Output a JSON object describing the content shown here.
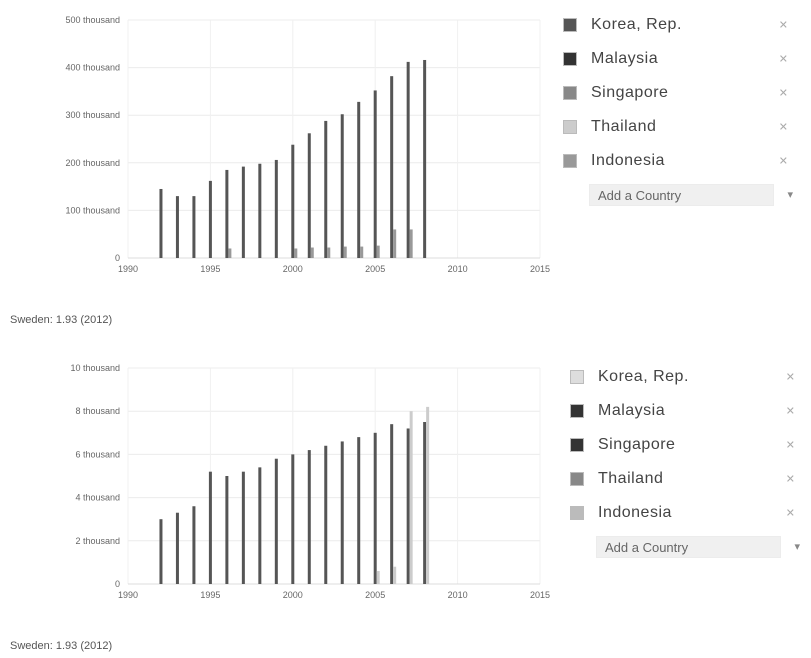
{
  "charts": [
    {
      "id": "top",
      "subtitle": "Sweden: 1.93 (2012)",
      "legend": [
        {
          "label": "Korea, Rep.",
          "color": "#555555",
          "remove": "✕"
        },
        {
          "label": "Malaysia",
          "color": "#333333",
          "remove": "✕"
        },
        {
          "label": "Singapore",
          "color": "#888888",
          "remove": "✕"
        },
        {
          "label": "Thailand",
          "color": "#cccccc",
          "remove": "✕"
        },
        {
          "label": "Indonesia",
          "color": "#999999",
          "remove": "✕"
        }
      ],
      "add_country": "Add a Country",
      "add_chevron": "▾"
    },
    {
      "id": "bottom",
      "subtitle": "Sweden: 1.93 (2012)",
      "legend": [
        {
          "label": "Korea, Rep.",
          "color": "#dddddd",
          "remove": "✕"
        },
        {
          "label": "Malaysia",
          "color": "#333333",
          "remove": "✕"
        },
        {
          "label": "Singapore",
          "color": "#333333",
          "remove": "✕"
        },
        {
          "label": "Thailand",
          "color": "#888888",
          "remove": "✕"
        },
        {
          "label": "Indonesia",
          "color": "#bbbbbb",
          "remove": "✕"
        }
      ],
      "add_country": "Add a Country",
      "add_chevron": "▾"
    }
  ],
  "chart_data": [
    {
      "type": "bar",
      "title": "",
      "xlabel": "",
      "ylabel": "",
      "xlim": [
        1990,
        2015
      ],
      "ylim": [
        0,
        500000
      ],
      "yticks": [
        0,
        100000,
        200000,
        300000,
        400000,
        500000
      ],
      "ytick_labels": [
        "0",
        "100 thousand",
        "200 thousand",
        "300 thousand",
        "400 thousand",
        "500 thousand"
      ],
      "xticks": [
        1990,
        1995,
        2000,
        2005,
        2010,
        2015
      ],
      "xtick_labels": [
        "1990",
        "1995",
        "2000",
        "2005",
        "2010",
        "2015"
      ],
      "grid": true,
      "legend": "right",
      "series": [
        {
          "name": "Korea, Rep.",
          "color": "#555555",
          "points": [
            [
              1992,
              145000
            ],
            [
              1993,
              130000
            ],
            [
              1994,
              130000
            ],
            [
              1995,
              162000
            ],
            [
              1996,
              185000
            ],
            [
              1997,
              192000
            ],
            [
              1998,
              198000
            ],
            [
              1999,
              206000
            ],
            [
              2000,
              238000
            ],
            [
              2001,
              262000
            ],
            [
              2002,
              288000
            ],
            [
              2003,
              302000
            ],
            [
              2004,
              328000
            ],
            [
              2005,
              352000
            ],
            [
              2006,
              382000
            ],
            [
              2007,
              412000
            ],
            [
              2008,
              416000
            ]
          ]
        },
        {
          "name": "Singapore",
          "color": "#999999",
          "points": [
            [
              1996,
              20000
            ],
            [
              2000,
              20000
            ],
            [
              2001,
              22000
            ],
            [
              2002,
              22000
            ],
            [
              2003,
              24000
            ],
            [
              2004,
              24000
            ],
            [
              2005,
              26000
            ],
            [
              2006,
              60000
            ],
            [
              2007,
              60000
            ]
          ]
        }
      ]
    },
    {
      "type": "bar",
      "title": "",
      "xlabel": "",
      "ylabel": "",
      "xlim": [
        1990,
        2015
      ],
      "ylim": [
        0,
        10
      ],
      "yticks": [
        0,
        2,
        4,
        6,
        8,
        10
      ],
      "ytick_labels": [
        "0",
        "2 thousand",
        "4 thousand",
        "6 thousand",
        "8 thousand",
        "10 thousand"
      ],
      "xticks": [
        1990,
        1995,
        2000,
        2005,
        2010,
        2015
      ],
      "xtick_labels": [
        "1990",
        "1995",
        "2000",
        "2005",
        "2010",
        "2015"
      ],
      "grid": true,
      "legend": "right",
      "series": [
        {
          "name": "Malaysia",
          "color": "#555555",
          "points": [
            [
              1992,
              3.0
            ],
            [
              1993,
              3.3
            ],
            [
              1994,
              3.6
            ],
            [
              1995,
              5.2
            ],
            [
              1996,
              5.0
            ],
            [
              1997,
              5.2
            ],
            [
              1998,
              5.4
            ],
            [
              1999,
              5.8
            ],
            [
              2000,
              6.0
            ],
            [
              2001,
              6.2
            ],
            [
              2002,
              6.4
            ],
            [
              2003,
              6.6
            ],
            [
              2004,
              6.8
            ],
            [
              2005,
              7.0
            ],
            [
              2006,
              7.4
            ],
            [
              2007,
              7.2
            ],
            [
              2008,
              7.5
            ]
          ]
        },
        {
          "name": "Korea, Rep.",
          "color": "#cccccc",
          "points": [
            [
              2005,
              0.6
            ],
            [
              2006,
              0.8
            ],
            [
              2007,
              8.0
            ],
            [
              2008,
              8.2
            ]
          ]
        }
      ]
    }
  ]
}
